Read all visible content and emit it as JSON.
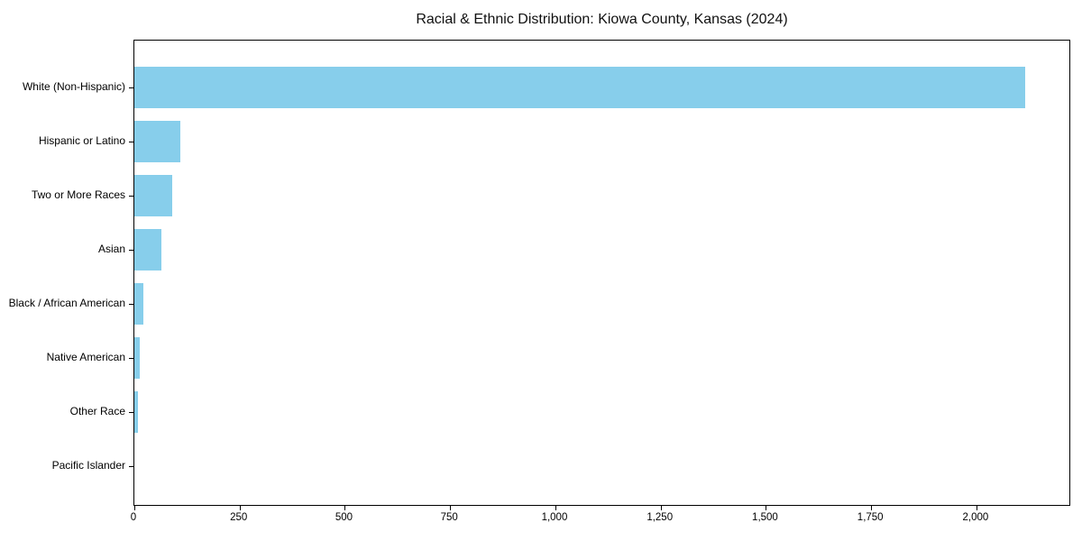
{
  "chart_data": {
    "type": "bar",
    "orientation": "horizontal",
    "title": "Racial & Ethnic Distribution: Kiowa County, Kansas (2024)",
    "categories": [
      "White (Non-Hispanic)",
      "Hispanic or Latino",
      "Two or More Races",
      "Asian",
      "Black / African American",
      "Native American",
      "Other Race",
      "Pacific Islander"
    ],
    "values": [
      2115,
      110,
      90,
      64,
      22,
      12,
      8,
      0
    ],
    "xlabel": "",
    "ylabel": "",
    "xlim": [
      0,
      2225
    ],
    "xticks": [
      0,
      250,
      500,
      750,
      1000,
      1250,
      1500,
      1750,
      2000
    ],
    "xtick_labels": [
      "0",
      "250",
      "500",
      "750",
      "1,000",
      "1,250",
      "1,500",
      "1,750",
      "2,000"
    ],
    "bar_color": "#87CEEB",
    "background_color": "#ffffff",
    "spine_color": "#000000",
    "grid": false,
    "legend": null
  }
}
